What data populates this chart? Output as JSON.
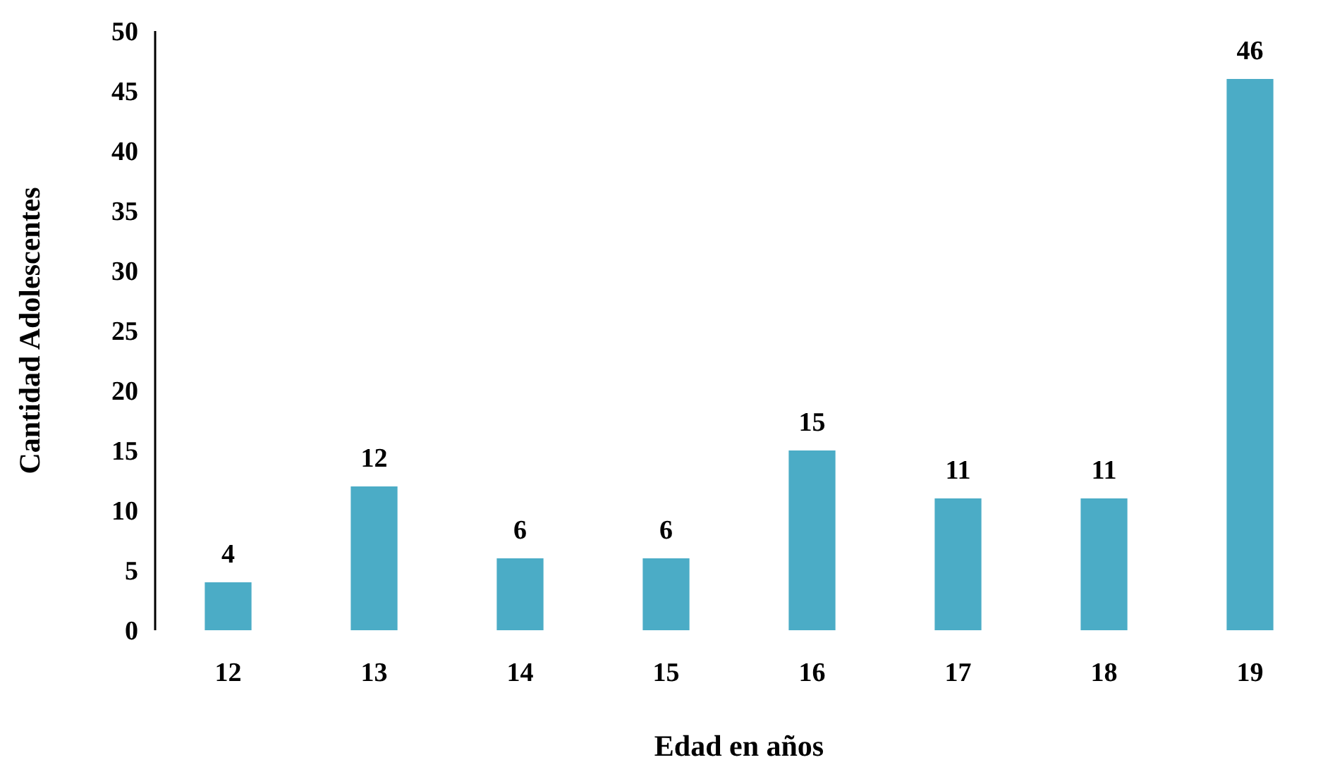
{
  "chart_data": {
    "type": "bar",
    "xlabel": "Edad en años",
    "ylabel": "Cantidad Adolescentes",
    "categories": [
      "12",
      "13",
      "14",
      "15",
      "16",
      "17",
      "18",
      "19"
    ],
    "values": [
      4,
      12,
      6,
      6,
      15,
      11,
      11,
      46
    ],
    "color": "#4bacc6",
    "ylim": [
      0,
      50
    ],
    "yticks": [
      0,
      5,
      10,
      15,
      20,
      25,
      30,
      35,
      40,
      45,
      50
    ],
    "grid": false,
    "data_labels": true
  }
}
